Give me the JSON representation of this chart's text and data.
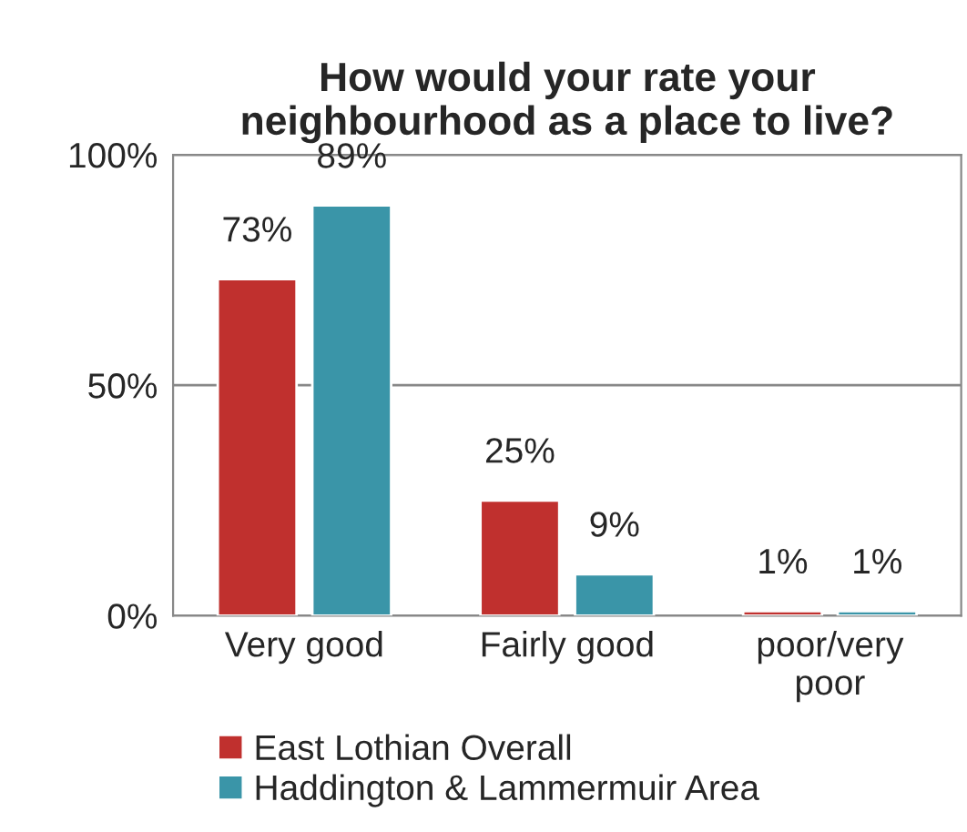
{
  "chart_data": {
    "type": "bar",
    "title": "How would your rate your\nneighbourhood as a place to live?",
    "categories": [
      "Very good",
      "Fairly good",
      "poor/very\npoor"
    ],
    "series": [
      {
        "name": "East Lothian Overall",
        "color": "#c0302e",
        "values": [
          73,
          25,
          1
        ],
        "value_labels": [
          "73%",
          "25%",
          "1%"
        ]
      },
      {
        "name": "Haddington & Lammermuir Area",
        "color": "#3a95a8",
        "values": [
          89,
          9,
          1
        ],
        "value_labels": [
          "89%",
          "9%",
          "1%"
        ]
      }
    ],
    "ylim": [
      0,
      100
    ],
    "yticks": [
      {
        "value": 0,
        "label": "0%"
      },
      {
        "value": 50,
        "label": "50%"
      },
      {
        "value": 100,
        "label": "100%"
      }
    ],
    "grid": "y",
    "legend": "bottom"
  }
}
